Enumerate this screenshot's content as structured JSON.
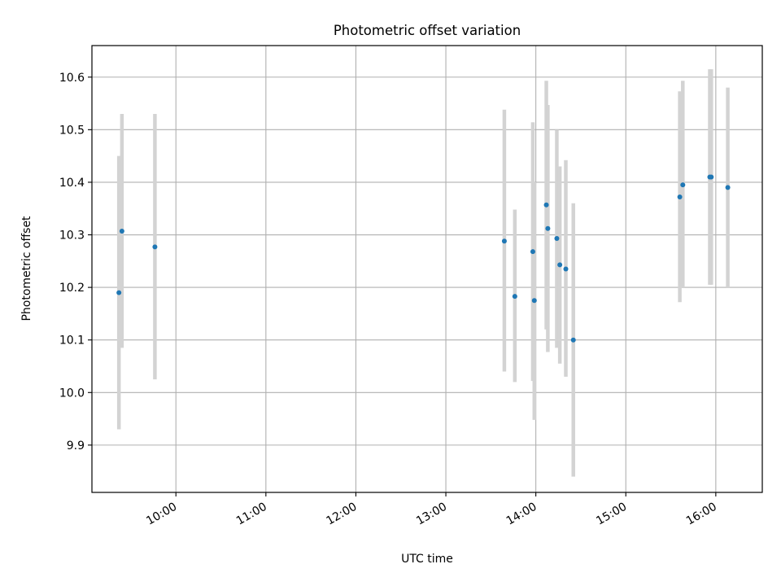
{
  "chart_data": {
    "type": "scatter",
    "title": "Photometric offset variation",
    "xlabel": "UTC time",
    "ylabel": "Photometric offset",
    "x_ticks": [
      "10:00",
      "11:00",
      "12:00",
      "13:00",
      "14:00",
      "15:00",
      "16:00"
    ],
    "y_ticks": [
      "9.9",
      "10.0",
      "10.1",
      "10.2",
      "10.3",
      "10.4",
      "10.5",
      "10.6"
    ],
    "xlim": [
      "09:04",
      "16:31"
    ],
    "ylim": [
      9.81,
      10.66
    ],
    "grid": true,
    "legend": "none",
    "marker_color": "#1f77b4",
    "errorbar_color": "#d3d3d3",
    "points": [
      {
        "t": "09:22",
        "y": 10.19,
        "lo": 9.93,
        "hi": 10.45
      },
      {
        "t": "09:24",
        "y": 10.307,
        "lo": 10.085,
        "hi": 10.53
      },
      {
        "t": "09:46",
        "y": 10.277,
        "lo": 10.025,
        "hi": 10.53
      },
      {
        "t": "13:39",
        "y": 10.288,
        "lo": 10.04,
        "hi": 10.538
      },
      {
        "t": "13:46",
        "y": 10.183,
        "lo": 10.02,
        "hi": 10.348
      },
      {
        "t": "13:58",
        "y": 10.268,
        "lo": 10.022,
        "hi": 10.514
      },
      {
        "t": "13:59",
        "y": 10.175,
        "lo": 9.948,
        "hi": 10.4
      },
      {
        "t": "14:07",
        "y": 10.357,
        "lo": 10.12,
        "hi": 10.593
      },
      {
        "t": "14:08",
        "y": 10.312,
        "lo": 10.077,
        "hi": 10.547
      },
      {
        "t": "14:14",
        "y": 10.293,
        "lo": 10.085,
        "hi": 10.5
      },
      {
        "t": "14:16",
        "y": 10.243,
        "lo": 10.055,
        "hi": 10.43
      },
      {
        "t": "14:20",
        "y": 10.235,
        "lo": 10.03,
        "hi": 10.442
      },
      {
        "t": "14:25",
        "y": 10.1,
        "lo": 9.84,
        "hi": 10.36
      },
      {
        "t": "15:36",
        "y": 10.372,
        "lo": 10.172,
        "hi": 10.573
      },
      {
        "t": "15:38",
        "y": 10.395,
        "lo": 10.2,
        "hi": 10.593
      },
      {
        "t": "15:56",
        "y": 10.41,
        "lo": 10.205,
        "hi": 10.615
      },
      {
        "t": "15:57",
        "y": 10.41,
        "lo": 10.205,
        "hi": 10.615
      },
      {
        "t": "16:08",
        "y": 10.39,
        "lo": 10.2,
        "hi": 10.58
      }
    ]
  }
}
